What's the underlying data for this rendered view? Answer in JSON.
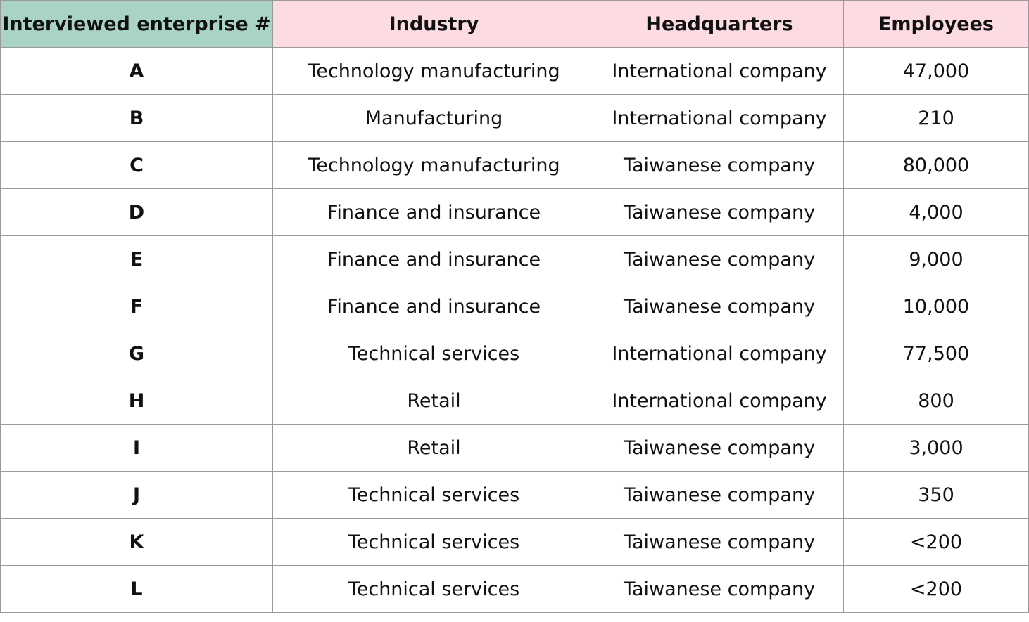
{
  "table": {
    "headers": [
      "Interviewed enterprise #",
      "Industry",
      "Headquarters",
      "Employees"
    ],
    "header_colors": {
      "first": "#a9d4c3",
      "rest": "#fcdce2"
    },
    "rows": [
      [
        "A",
        "Technology manufacturing",
        "International company",
        "47,000"
      ],
      [
        "B",
        "Manufacturing",
        "International company",
        "210"
      ],
      [
        "C",
        "Technology manufacturing",
        "Taiwanese company",
        "80,000"
      ],
      [
        "D",
        "Finance and insurance",
        "Taiwanese company",
        "4,000"
      ],
      [
        "E",
        "Finance and insurance",
        "Taiwanese company",
        "9,000"
      ],
      [
        "F",
        "Finance and insurance",
        "Taiwanese company",
        "10,000"
      ],
      [
        "G",
        "Technical services",
        "International company",
        "77,500"
      ],
      [
        "H",
        "Retail",
        "International company",
        "800"
      ],
      [
        "I",
        "Retail",
        "Taiwanese company",
        "3,000"
      ],
      [
        "J",
        "Technical services",
        "Taiwanese company",
        "350"
      ],
      [
        "K",
        "Technical services",
        "Taiwanese company",
        "<200"
      ],
      [
        "L",
        "Technical services",
        "Taiwanese company",
        "<200"
      ]
    ]
  }
}
